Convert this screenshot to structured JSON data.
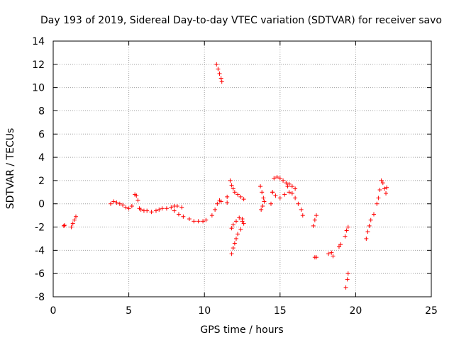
{
  "chart_data": {
    "type": "scatter",
    "title": "Day 193 of 2019, Sidereal Day-to-day VTEC variation (SDTVAR) for receiver savo",
    "xlabel": "GPS time / hours",
    "ylabel": "SDTVAR / TECUs",
    "xlim": [
      0,
      25
    ],
    "ylim": [
      -8,
      14
    ],
    "xticks": [
      "0",
      "5",
      "10",
      "15",
      "20",
      "25"
    ],
    "yticks": [
      "-8",
      "-6",
      "-4",
      "-2",
      "0",
      "2",
      "4",
      "6",
      "8",
      "10",
      "12",
      "14"
    ],
    "grid": true,
    "marker": "+",
    "color": "#ff0000",
    "series": [
      {
        "name": "SDTVAR",
        "x": [
          0.7,
          0.75,
          1.2,
          1.3,
          1.4,
          1.5,
          3.8,
          4.0,
          4.2,
          4.4,
          4.6,
          4.8,
          5.0,
          5.2,
          5.4,
          5.5,
          5.6,
          5.7,
          5.8,
          6.0,
          6.2,
          6.5,
          6.8,
          7.0,
          7.2,
          7.5,
          7.8,
          8.0,
          8.2,
          8.5,
          8.0,
          8.3,
          8.6,
          9.0,
          9.3,
          9.6,
          9.9,
          10.1,
          10.5,
          10.7,
          10.85,
          11.0,
          11.1,
          10.8,
          10.9,
          11.0,
          11.1,
          11.15,
          11.5,
          11.5,
          11.7,
          11.8,
          11.9,
          12.0,
          12.2,
          12.4,
          12.6,
          12.5,
          11.8,
          11.9,
          12.1,
          12.3,
          12.5,
          12.6,
          11.8,
          11.9,
          12.0,
          12.1,
          12.2,
          12.4,
          13.7,
          13.8,
          13.9,
          13.75,
          13.85,
          13.95,
          14.4,
          14.5,
          14.6,
          14.8,
          15.0,
          15.2,
          15.4,
          15.5,
          15.6,
          15.8,
          16.0,
          16.2,
          16.4,
          16.5,
          14.5,
          14.7,
          15.0,
          15.3,
          15.6,
          15.8,
          16.0,
          17.2,
          17.3,
          17.4,
          17.3,
          17.4,
          18.2,
          18.4,
          18.5,
          18.9,
          19.0,
          19.3,
          19.4,
          19.5,
          19.35,
          19.45,
          19.5,
          20.7,
          20.8,
          20.9,
          21.0,
          21.2,
          21.4,
          21.5,
          21.6,
          21.7,
          21.8,
          21.9,
          22.0,
          22.05
        ],
        "y": [
          -1.9,
          -1.85,
          -2.0,
          -1.7,
          -1.4,
          -1.1,
          0.0,
          0.2,
          0.1,
          0.0,
          -0.1,
          -0.3,
          -0.4,
          -0.2,
          0.8,
          0.7,
          0.3,
          -0.4,
          -0.5,
          -0.6,
          -0.6,
          -0.7,
          -0.6,
          -0.5,
          -0.4,
          -0.4,
          -0.3,
          -0.2,
          -0.2,
          -0.3,
          -0.6,
          -0.9,
          -1.1,
          -1.3,
          -1.5,
          -1.5,
          -1.5,
          -1.4,
          -1.0,
          -0.5,
          0.0,
          0.3,
          0.2,
          12.0,
          11.6,
          11.2,
          10.8,
          10.5,
          0.6,
          0.1,
          2.0,
          1.6,
          1.3,
          1.0,
          0.8,
          0.6,
          0.4,
          -1.5,
          -2.1,
          -1.8,
          -1.5,
          -1.2,
          -1.3,
          -1.7,
          -4.3,
          -3.8,
          -3.4,
          -3.0,
          -2.6,
          -2.2,
          1.5,
          1.0,
          0.5,
          -0.5,
          -0.2,
          0.2,
          0.0,
          1.0,
          2.2,
          2.3,
          2.2,
          2.0,
          1.8,
          1.5,
          1.7,
          1.5,
          0.5,
          0.0,
          -0.5,
          -1.0,
          1.0,
          0.7,
          0.5,
          0.8,
          1.0,
          0.9,
          1.3,
          -1.9,
          -1.4,
          -1.0,
          -4.6,
          -4.6,
          -4.3,
          -4.2,
          -4.5,
          -3.7,
          -3.5,
          -2.8,
          -2.3,
          -2.0,
          -7.2,
          -6.5,
          -6.0,
          -3.0,
          -2.4,
          -1.9,
          -1.4,
          -0.9,
          0.0,
          0.5,
          1.2,
          2.0,
          1.8,
          1.3,
          0.9,
          1.4
        ]
      }
    ]
  }
}
